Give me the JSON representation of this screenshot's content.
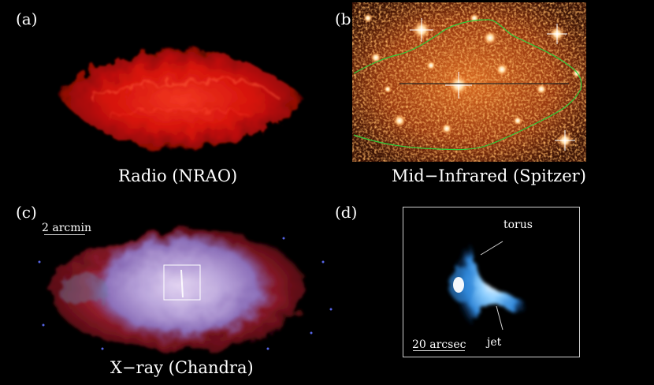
{
  "panels": {
    "a": {
      "letter": "(a)",
      "caption": "Radio (NRAO)"
    },
    "b": {
      "letter": "(b)",
      "caption": "Mid−Infrared (Spitzer)"
    },
    "c": {
      "letter": "(c)",
      "caption": "X−ray (Chandra)",
      "scale_label": "2 arcmin"
    },
    "d": {
      "letter": "(d)",
      "scale_label": "20 arcsec",
      "label_torus": "torus",
      "label_jet": "jet"
    }
  },
  "colors": {
    "background": "#000000",
    "radio": "#e0140c",
    "infrared": "#e06a1c",
    "contour": "#2fcf3a",
    "xray_outer": "#b0283a",
    "xray_inner": "#b9aee8",
    "zoom_jet": "#3c9bf0"
  }
}
